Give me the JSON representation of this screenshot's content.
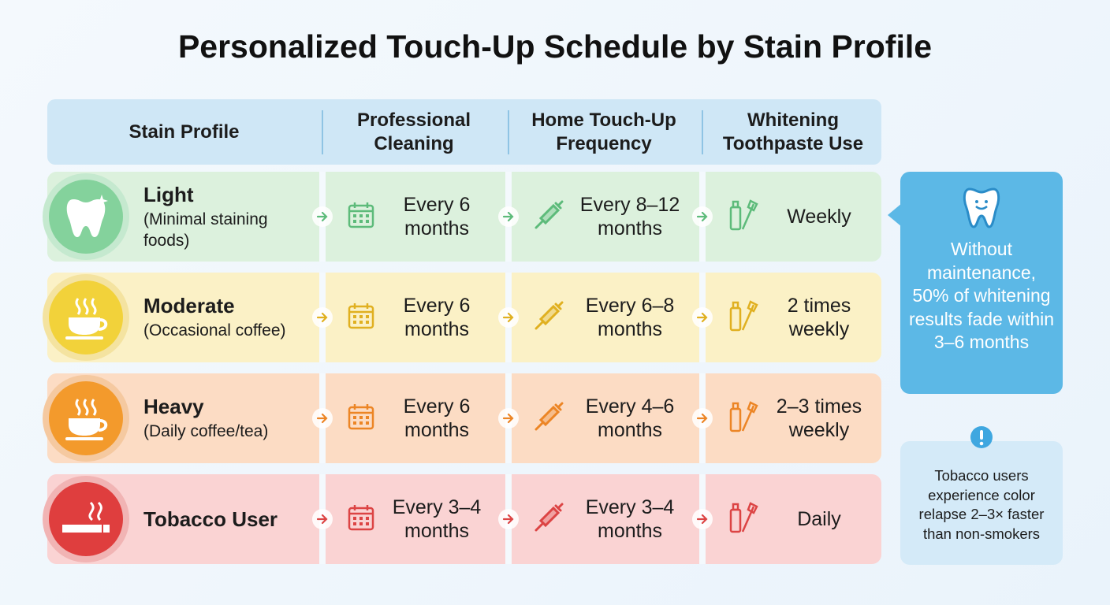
{
  "title": "Personalized Touch-Up Schedule by Stain Profile",
  "table": {
    "headers": [
      "Stain Profile",
      "Professional Cleaning",
      "Home Touch-Up Frequency",
      "Whitening Toothpaste Use"
    ],
    "rows": [
      {
        "profile": "Light",
        "description": "(Minimal staining foods)",
        "cells": [
          "Every 6 months",
          "Every 8–12 months",
          "Weekly"
        ]
      },
      {
        "profile": "Moderate",
        "description": "(Occasional coffee)",
        "cells": [
          "Every 6 months",
          "Every 6–8 months",
          "2 times weekly"
        ]
      },
      {
        "profile": "Heavy",
        "description": "(Daily coffee/tea)",
        "cells": [
          "Every 6 months",
          "Every 4–6 months",
          "2–3 times weekly"
        ]
      },
      {
        "profile": "Tobacco User",
        "cells": [
          "Every 3–4 months",
          "Every 3–4 months",
          "Daily"
        ]
      }
    ]
  },
  "callout": {
    "text": "Without maintenance, 50% of whitening results fade within 3–6 months"
  },
  "note": {
    "text": "Tobacco users experience color relapse 2–3× faster than non-smokers"
  }
}
